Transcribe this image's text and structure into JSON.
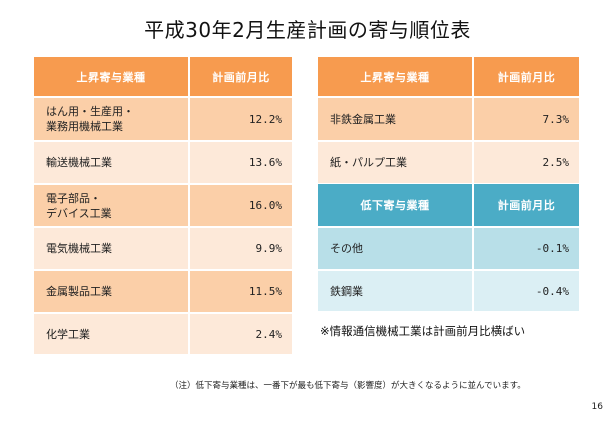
{
  "title": "平成30年2月生産計画の寄与順位表",
  "left_table": {
    "header": {
      "name": "上昇寄与業種",
      "value": "計画前月比"
    },
    "rows": [
      {
        "name": "はん用・生産用・\n業務用機械工業",
        "value": "12.2%"
      },
      {
        "name": "輸送機械工業",
        "value": "13.6%"
      },
      {
        "name": "電子部品・\nデバイス工業",
        "value": "16.0%"
      },
      {
        "name": "電気機械工業",
        "value": "9.9%"
      },
      {
        "name": "金属製品工業",
        "value": "11.5%"
      },
      {
        "name": "化学工業",
        "value": "2.4%"
      }
    ]
  },
  "right_table_up": {
    "header": {
      "name": "上昇寄与業種",
      "value": "計画前月比"
    },
    "rows": [
      {
        "name": "非鉄金属工業",
        "value": "7.3%"
      },
      {
        "name": "紙・パルプ工業",
        "value": "2.5%"
      }
    ]
  },
  "right_table_down": {
    "header": {
      "name": "低下寄与業種",
      "value": "計画前月比"
    },
    "rows": [
      {
        "name": "その他",
        "value": "-0.1%"
      },
      {
        "name": "鉄鋼業",
        "value": "-0.4%"
      }
    ]
  },
  "note_right": "※情報通信機械工業は計画前月比横ばい",
  "footnote": "（注）低下寄与業種は、一番下が最も低下寄与（影響度）が大きくなるように並んでいます。",
  "page_number": "16",
  "colors": {
    "orange_header": "#f79b4f",
    "orange_dark_row": "#fbcfa8",
    "orange_light_row": "#fde9d9",
    "blue_header": "#4bacc6",
    "blue_dark_row": "#b8dfe8",
    "blue_light_row": "#dbeff4"
  }
}
